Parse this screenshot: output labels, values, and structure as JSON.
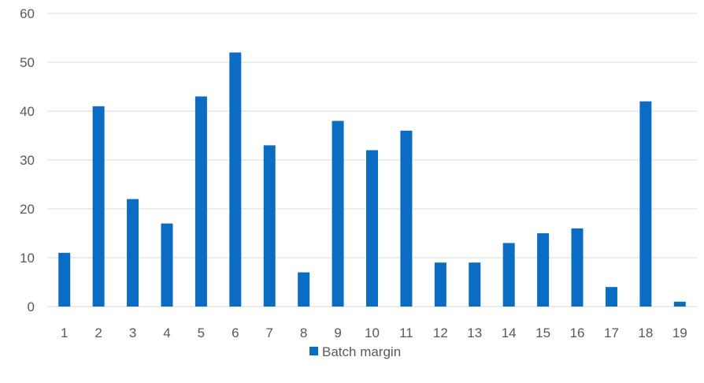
{
  "chart_data": {
    "type": "bar",
    "categories": [
      "1",
      "2",
      "3",
      "4",
      "5",
      "6",
      "7",
      "8",
      "9",
      "10",
      "11",
      "12",
      "13",
      "14",
      "15",
      "16",
      "17",
      "18",
      "19"
    ],
    "series": [
      {
        "name": "Batch margin",
        "color": "#0a6cc2",
        "values": [
          11,
          41,
          22,
          17,
          43,
          52,
          33,
          7,
          38,
          32,
          36,
          9,
          9,
          13,
          15,
          16,
          4,
          42,
          1
        ]
      }
    ],
    "ylim": [
      0,
      60
    ],
    "yticks": [
      0,
      10,
      20,
      30,
      40,
      50,
      60
    ],
    "grid": true,
    "legend_position": "bottom",
    "gridline_color": "#d9d9d9"
  }
}
